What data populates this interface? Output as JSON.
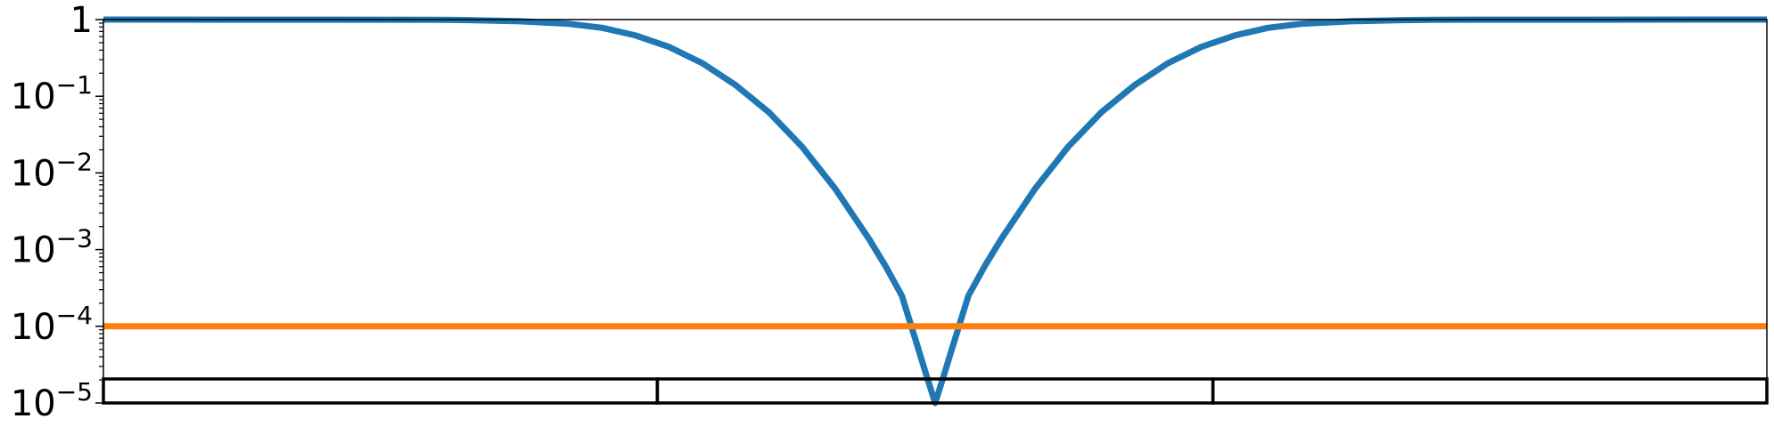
{
  "chart_data": {
    "type": "line",
    "yscale": "log",
    "ylim": [
      1e-05,
      1
    ],
    "xlim": [
      0,
      1
    ],
    "x_tick_labels_visible": false,
    "y_ticks": [
      {
        "value": 1,
        "base": "1",
        "exp": ""
      },
      {
        "value": 0.1,
        "base": "10",
        "exp": "−1"
      },
      {
        "value": 0.01,
        "base": "10",
        "exp": "−2"
      },
      {
        "value": 0.001,
        "base": "10",
        "exp": "−3"
      },
      {
        "value": 0.0001,
        "base": "10",
        "exp": "−4"
      },
      {
        "value": 1e-05,
        "base": "10",
        "exp": "−5"
      }
    ],
    "grid": false,
    "legend": "none",
    "series": [
      {
        "color": "#1f77b4",
        "x": [
          0.0,
          0.2,
          0.22,
          0.25,
          0.28,
          0.3,
          0.32,
          0.34,
          0.36,
          0.38,
          0.4,
          0.42,
          0.44,
          0.46,
          0.47,
          0.48,
          0.49,
          0.495,
          0.5,
          0.505,
          0.51,
          0.52,
          0.53,
          0.54,
          0.56,
          0.58,
          0.6,
          0.62,
          0.64,
          0.66,
          0.68,
          0.7,
          0.72,
          0.75,
          0.78,
          0.8,
          1.0
        ],
        "y": [
          1.0,
          0.995,
          0.985,
          0.95,
          0.88,
          0.78,
          0.62,
          0.44,
          0.27,
          0.14,
          0.062,
          0.022,
          0.0062,
          0.0014,
          0.00062,
          0.00025,
          5e-05,
          2.2e-05,
          1e-05,
          2.2e-05,
          5e-05,
          0.00025,
          0.00062,
          0.0014,
          0.0062,
          0.022,
          0.062,
          0.14,
          0.27,
          0.44,
          0.62,
          0.78,
          0.88,
          0.95,
          0.985,
          0.995,
          1.0
        ]
      },
      {
        "color": "#ff7f0e",
        "x": [
          0,
          1
        ],
        "y": [
          0.0001,
          0.0001
        ]
      }
    ],
    "bar_segments": [
      {
        "x0": 0.0,
        "x1": 0.333
      },
      {
        "x0": 0.333,
        "x1": 0.667
      },
      {
        "x0": 0.667,
        "x1": 1.0
      }
    ]
  }
}
